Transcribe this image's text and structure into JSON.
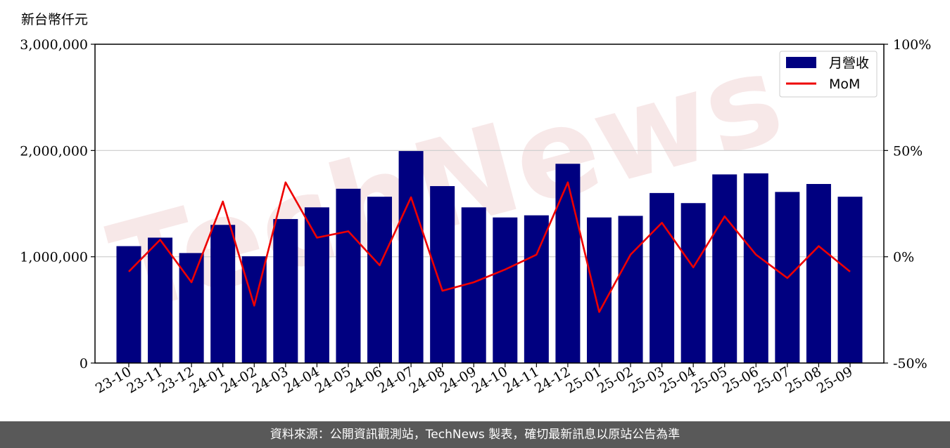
{
  "unit_label": "新台幣仟元",
  "watermark": "TechNews",
  "footer": "資料來源：公開資訊觀測站，TechNews 製表，確切最新訊息以原站公告為準",
  "colors": {
    "bar": "#000080",
    "line": "#ee0000",
    "grid": "#cccccc",
    "footer_bg": "#595959"
  },
  "chart_data": {
    "type": "bar",
    "categories": [
      "23-10",
      "23-11",
      "23-12",
      "24-01",
      "24-02",
      "24-03",
      "24-04",
      "24-05",
      "24-06",
      "24-07",
      "24-08",
      "24-09",
      "24-10",
      "24-11",
      "24-12",
      "25-01",
      "25-02",
      "25-03",
      "25-04",
      "25-05",
      "25-06",
      "25-07",
      "25-08",
      "25-09"
    ],
    "series": [
      {
        "name": "月營收",
        "type": "bar",
        "axis": "left",
        "values": [
          1100000,
          1180000,
          1035000,
          1300000,
          1005000,
          1355000,
          1465000,
          1640000,
          1565000,
          1995000,
          1665000,
          1465000,
          1370000,
          1390000,
          1875000,
          1370000,
          1385000,
          1600000,
          1505000,
          1775000,
          1785000,
          1610000,
          1685000,
          1565000
        ]
      },
      {
        "name": "MoM",
        "type": "line",
        "axis": "right",
        "values": [
          -7,
          8,
          -12,
          26,
          -23,
          35,
          9,
          12,
          -4,
          28,
          -16,
          -12,
          -6,
          1,
          35,
          -26,
          1,
          16,
          -5,
          19,
          1,
          -10,
          5,
          -7
        ]
      }
    ],
    "left_axis": {
      "ylim": [
        0,
        3000000
      ],
      "ticks": [
        0,
        1000000,
        2000000,
        3000000
      ],
      "tick_labels": [
        "0",
        "1,000,000",
        "2,000,000",
        "3,000,000"
      ]
    },
    "right_axis": {
      "ylim": [
        -50,
        100
      ],
      "ticks": [
        -50,
        0,
        50,
        100
      ],
      "tick_labels": [
        "-50%",
        "0%",
        "50%",
        "100%"
      ]
    },
    "grid": "horizontal",
    "legend": "top-right"
  }
}
